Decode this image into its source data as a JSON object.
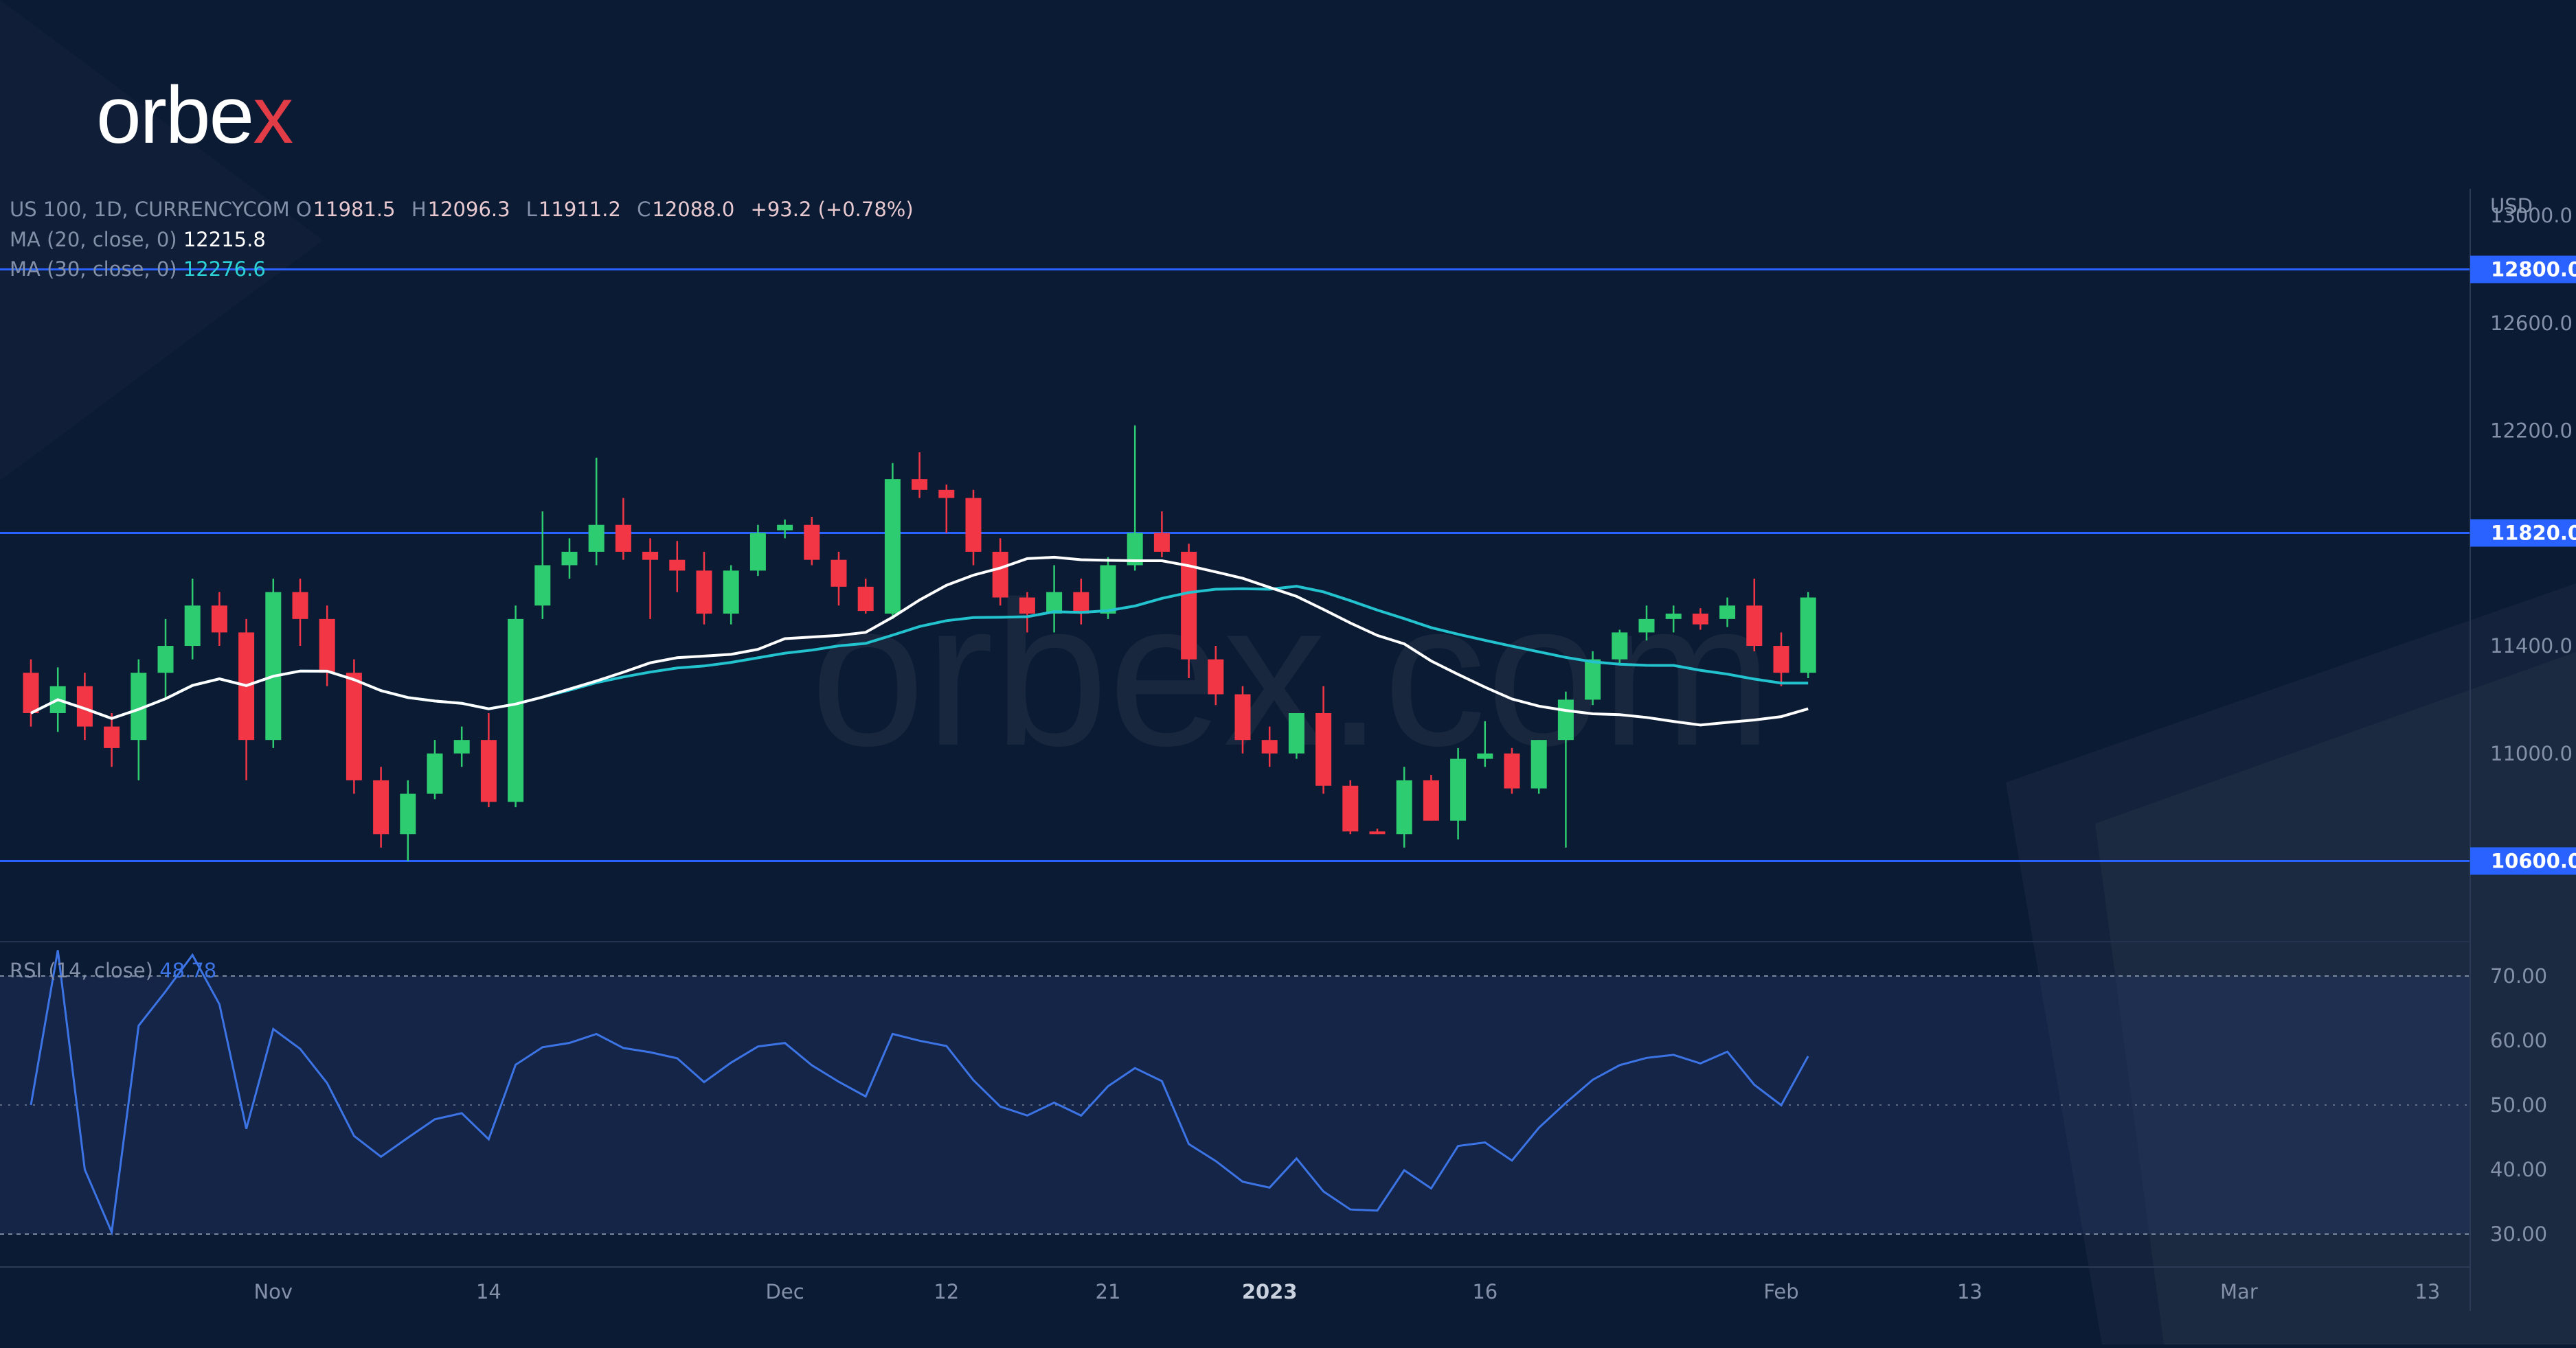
{
  "brand": {
    "logo_text_main": "orbe",
    "logo_text_accent": "x",
    "watermark": "orbex.com"
  },
  "header": {
    "symbol": "US 100, 1D, CURRENCYCOM",
    "ohlc": {
      "o_label": "O",
      "o": "11981.5",
      "h_label": "H",
      "h": "12096.3",
      "l_label": "L",
      "l": "11911.2",
      "c_label": "C",
      "c": "12088.0",
      "change": "+93.2 (+0.78%)"
    },
    "ma20": {
      "label": "MA (20, close, 0)",
      "value": "12215.8"
    },
    "ma30": {
      "label": "MA (30, close, 0)",
      "value": "12276.6"
    },
    "rsi": {
      "label": "RSI (14, close)",
      "value": "48.78"
    }
  },
  "colors": {
    "background": "#0c1b34",
    "up": "#2ecc71",
    "down": "#f23645",
    "ma20": "#ffffff",
    "ma30": "#22c3cf",
    "level": "#2962ff",
    "rsi": "#3c74e6"
  },
  "chart_data": [
    {
      "type": "candlestick",
      "currency_label": "USD",
      "ylim": [
        10300,
        13100
      ],
      "yticks": [
        11000,
        11400,
        12200,
        12600,
        13000
      ],
      "ytick_labels": [
        "11000.0",
        "11400.0",
        "12200.0",
        "12600.0",
        "13000.0"
      ],
      "levels": [
        {
          "value": 12800,
          "label": "12800.0"
        },
        {
          "value": 11820,
          "label": "11820.0"
        },
        {
          "value": 10600,
          "label": "10600.0"
        }
      ],
      "x_labels": [
        {
          "index": 9,
          "label": "Nov"
        },
        {
          "index": 17,
          "label": "14"
        },
        {
          "index": 28,
          "label": "Dec"
        },
        {
          "index": 34,
          "label": "12"
        },
        {
          "index": 40,
          "label": "21"
        },
        {
          "index": 46,
          "label": "2023"
        },
        {
          "index": 54,
          "label": "16"
        },
        {
          "index": 65,
          "label": "Feb"
        },
        {
          "index": 72,
          "label": "13"
        },
        {
          "index": 82,
          "label": "Mar"
        },
        {
          "index": 89,
          "label": "13"
        }
      ],
      "candles": [
        [
          11300,
          11350,
          11100,
          11150
        ],
        [
          11150,
          11320,
          11080,
          11250
        ],
        [
          11250,
          11300,
          11050,
          11100
        ],
        [
          11100,
          11150,
          10950,
          11020
        ],
        [
          11050,
          11350,
          10900,
          11300
        ],
        [
          11300,
          11500,
          11200,
          11400
        ],
        [
          11400,
          11650,
          11350,
          11550
        ],
        [
          11550,
          11600,
          11400,
          11450
        ],
        [
          11450,
          11500,
          10900,
          11050
        ],
        [
          11050,
          11650,
          11020,
          11600
        ],
        [
          11600,
          11650,
          11400,
          11500
        ],
        [
          11500,
          11550,
          11250,
          11300
        ],
        [
          11300,
          11350,
          10850,
          10900
        ],
        [
          10900,
          10950,
          10650,
          10700
        ],
        [
          10700,
          10900,
          10600,
          10850
        ],
        [
          10850,
          11050,
          10830,
          11000
        ],
        [
          11000,
          11100,
          10950,
          11050
        ],
        [
          11050,
          11150,
          10800,
          10820
        ],
        [
          10820,
          11550,
          10800,
          11500
        ],
        [
          11550,
          11900,
          11500,
          11700
        ],
        [
          11700,
          11800,
          11650,
          11750
        ],
        [
          11750,
          12100,
          11700,
          11850
        ],
        [
          11850,
          11950,
          11720,
          11750
        ],
        [
          11750,
          11800,
          11500,
          11720
        ],
        [
          11720,
          11790,
          11600,
          11680
        ],
        [
          11680,
          11750,
          11480,
          11520
        ],
        [
          11520,
          11700,
          11480,
          11680
        ],
        [
          11680,
          11850,
          11660,
          11820
        ],
        [
          11830,
          11870,
          11800,
          11850
        ],
        [
          11850,
          11880,
          11700,
          11720
        ],
        [
          11720,
          11750,
          11550,
          11620
        ],
        [
          11620,
          11650,
          11520,
          11530
        ],
        [
          11520,
          12080,
          11500,
          12020
        ],
        [
          12020,
          12120,
          11950,
          11980
        ],
        [
          11980,
          12000,
          11820,
          11950
        ],
        [
          11950,
          11980,
          11700,
          11750
        ],
        [
          11750,
          11800,
          11550,
          11580
        ],
        [
          11580,
          11600,
          11450,
          11520
        ],
        [
          11520,
          11700,
          11450,
          11600
        ],
        [
          11600,
          11650,
          11480,
          11520
        ],
        [
          11520,
          11730,
          11500,
          11700
        ],
        [
          11700,
          12220,
          11680,
          11820
        ],
        [
          11820,
          11900,
          11730,
          11750
        ],
        [
          11750,
          11780,
          11280,
          11350
        ],
        [
          11350,
          11400,
          11180,
          11220
        ],
        [
          11220,
          11250,
          11000,
          11050
        ],
        [
          11050,
          11100,
          10950,
          11000
        ],
        [
          11000,
          11150,
          10980,
          11150
        ],
        [
          11150,
          11250,
          10850,
          10880
        ],
        [
          10880,
          10900,
          10700,
          10710
        ],
        [
          10710,
          10720,
          10700,
          10700
        ],
        [
          10700,
          10950,
          10650,
          10900
        ],
        [
          10900,
          10920,
          10750,
          10750
        ],
        [
          10750,
          11020,
          10680,
          10980
        ],
        [
          10980,
          11120,
          10950,
          11000
        ],
        [
          11000,
          11020,
          10850,
          10870
        ],
        [
          10870,
          11050,
          10850,
          11050
        ],
        [
          11050,
          11230,
          10650,
          11200
        ],
        [
          11200,
          11380,
          11180,
          11350
        ],
        [
          11350,
          11460,
          11330,
          11450
        ],
        [
          11450,
          11550,
          11420,
          11500
        ],
        [
          11500,
          11550,
          11450,
          11520
        ],
        [
          11520,
          11540,
          11460,
          11480
        ],
        [
          11500,
          11580,
          11470,
          11550
        ],
        [
          11550,
          11650,
          11380,
          11400
        ],
        [
          11400,
          11450,
          11250,
          11300
        ],
        [
          11300,
          11600,
          11280,
          11580
        ]
      ],
      "ma20": [],
      "ma30": []
    },
    {
      "type": "line",
      "name": "RSI (14, close)",
      "ylim": [
        25,
        75
      ],
      "yticks": [
        30,
        40,
        50,
        60,
        70
      ],
      "ytick_labels": [
        "30.00",
        "40.00",
        "50.00",
        "60.00",
        "70.00"
      ],
      "bands": [
        30,
        70
      ],
      "values": []
    }
  ]
}
